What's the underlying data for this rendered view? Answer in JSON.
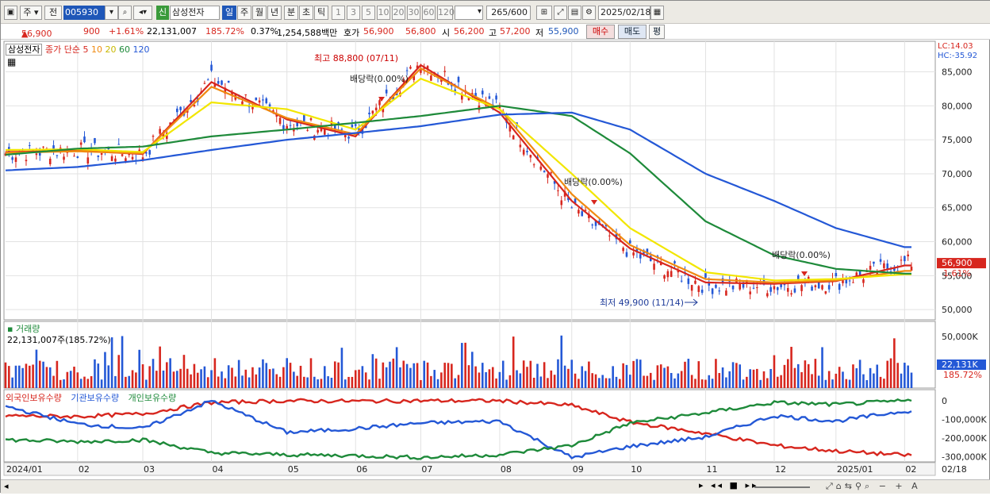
{
  "toolbar": {
    "market_labels": [
      "주",
      "전"
    ],
    "stock_code": "005930",
    "stock_name": "삼성전자",
    "new_badge": "신",
    "period_tabs": [
      "일",
      "주",
      "월",
      "년",
      "분",
      "초",
      "틱"
    ],
    "active_period": "일",
    "interval_options": [
      "1",
      "3",
      "5",
      "10",
      "20",
      "30",
      "60",
      "120"
    ],
    "count": "265",
    "count_max": "/600",
    "date": "2025/02/18"
  },
  "quote": {
    "price": "56,900",
    "arrow": "▲",
    "change": "900",
    "change_pct": "+1.61%",
    "volume": "22,131,007",
    "volume_ratio": "185.72%",
    "turnover": "0.37%",
    "trade_value": "1,254,588백만",
    "bid_ask_label": "호가",
    "bid_ask_1": "56,900",
    "bid_ask_2": "56,800",
    "open_label": "시",
    "open": "56,200",
    "high_label": "고",
    "high": "57,200",
    "low_label": "저",
    "low": "55,900",
    "buy_button": "매수",
    "sell_button": "매도",
    "eval_button": "평"
  },
  "price_panel": {
    "name_tag": "삼성전자",
    "legend_prefix": "종가 단순",
    "ma_labels": [
      "5",
      "10",
      "20",
      "60",
      "120"
    ],
    "ma_colors": [
      "#d7261e",
      "#f08a10",
      "#f2e600",
      "#1e8a3a",
      "#2458d6"
    ],
    "lc_label": "LC:14.03",
    "hc_label": "HC:-35.92",
    "price_axis": [
      "85,000",
      "80,000",
      "75,000",
      "70,000",
      "65,000",
      "60,000",
      "55,000",
      "50,000"
    ],
    "last_price_tag": "56,900",
    "last_change_tag": "1.61%",
    "high_note": "최고 88,800 (07/11)",
    "low_note": "최저 49,900 (11/14)",
    "dividend_notes": [
      "배당락(0.00%)",
      "배당락(0.00%)",
      "배당락(0.00%)"
    ]
  },
  "volume_panel": {
    "title": "거래량",
    "value": "22,131,007주(185.72%)",
    "axis": [
      "50,000K"
    ],
    "last_tag": "22,131K",
    "last_pct": "185.72%"
  },
  "holdings_panel": {
    "labels": [
      "외국인보유수량",
      "기관보유수량",
      "개인보유수량"
    ],
    "colors": [
      "#d7261e",
      "#2458d6",
      "#1e8a3a"
    ],
    "axis": [
      "0",
      "-100,000K",
      "-200,000K",
      "-300,000K"
    ]
  },
  "x_axis": [
    "2024/01",
    "02",
    "03",
    "04",
    "05",
    "06",
    "07",
    "08",
    "09",
    "10",
    "11",
    "12",
    "2025/01",
    "02",
    "02/18"
  ],
  "colors": {
    "up": "#d7261e",
    "down": "#2458d6",
    "accent": "#1f57b8"
  },
  "chart_data": {
    "type": "candlestick",
    "title": "",
    "xlabel": "",
    "ylabel": "",
    "ylim": [
      48500,
      89500
    ],
    "x": [
      "2024-01",
      "2024-02",
      "2024-03",
      "2024-04",
      "2024-05",
      "2024-06",
      "2024-07",
      "2024-08",
      "2024-09",
      "2024-10",
      "2024-11",
      "2024-12",
      "2025-01",
      "2025-02-18"
    ],
    "series": [
      {
        "name": "종가",
        "values": [
          73000,
          73500,
          72800,
          84000,
          77500,
          76000,
          86500,
          79500,
          65000,
          58500,
          53500,
          53500,
          54000,
          56900
        ]
      },
      {
        "name": "5",
        "values": [
          73200,
          73400,
          72900,
          83500,
          78000,
          75500,
          86000,
          79000,
          66000,
          59000,
          54000,
          53800,
          54200,
          56500
        ]
      },
      {
        "name": "10",
        "values": [
          73100,
          73300,
          73000,
          82800,
          78200,
          75800,
          85500,
          79500,
          67000,
          59500,
          54500,
          54000,
          54300,
          55700
        ]
      },
      {
        "name": "20",
        "values": [
          73500,
          73600,
          73200,
          80500,
          79500,
          76500,
          84000,
          79500,
          70000,
          62000,
          55500,
          54300,
          54500,
          55200
        ]
      },
      {
        "name": "60",
        "values": [
          72800,
          73700,
          74000,
          75500,
          76500,
          77500,
          78500,
          80000,
          78500,
          73000,
          63000,
          58000,
          56000,
          55300
        ]
      },
      {
        "name": "120",
        "values": [
          70500,
          71000,
          72000,
          73500,
          75000,
          76000,
          77000,
          78700,
          79000,
          76500,
          70000,
          66000,
          62000,
          59200
        ]
      }
    ],
    "volume": {
      "last": "22,131,007",
      "ylim_max": 50000
    }
  }
}
